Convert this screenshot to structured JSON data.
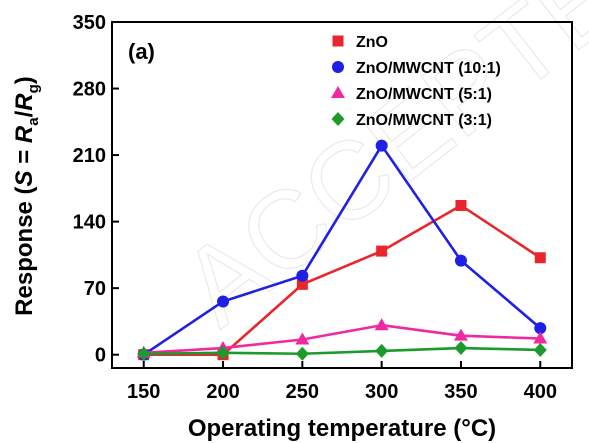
{
  "chart_data": {
    "type": "line",
    "panel_label": "(a)",
    "watermark": "ACCEPTED",
    "xlabel": "Operating temperature (°C)",
    "ylabel": {
      "prefix": "Response (",
      "symbol": "S",
      "equals": " = ",
      "num": "R",
      "num_sub": "a",
      "slash": "/",
      "den": "R",
      "den_sub": "g",
      "suffix": ")"
    },
    "xlim": [
      130,
      420
    ],
    "ylim": [
      -14,
      350
    ],
    "xticks": [
      150,
      200,
      250,
      300,
      350,
      400
    ],
    "yticks": [
      0,
      70,
      140,
      210,
      280,
      350
    ],
    "x": [
      150,
      200,
      250,
      300,
      350,
      400
    ],
    "legend_position": "top-right",
    "series": [
      {
        "name": "ZnO",
        "color": "#e8262c",
        "marker": "square",
        "values": [
          0,
          0,
          74,
          109,
          157,
          102
        ]
      },
      {
        "name": "ZnO/MWCNT (10:1)",
        "color": "#1f1fe6",
        "marker": "circle",
        "values": [
          0,
          56,
          83,
          220,
          99,
          28
        ]
      },
      {
        "name": "ZnO/MWCNT (5:1)",
        "color": "#ef2aa0",
        "marker": "triangle",
        "values": [
          2,
          7,
          16,
          31,
          20,
          17
        ]
      },
      {
        "name": "ZnO/MWCNT (3:1)",
        "color": "#1c9a2c",
        "marker": "diamond",
        "values": [
          1,
          2,
          1,
          4,
          7,
          5
        ]
      }
    ]
  }
}
